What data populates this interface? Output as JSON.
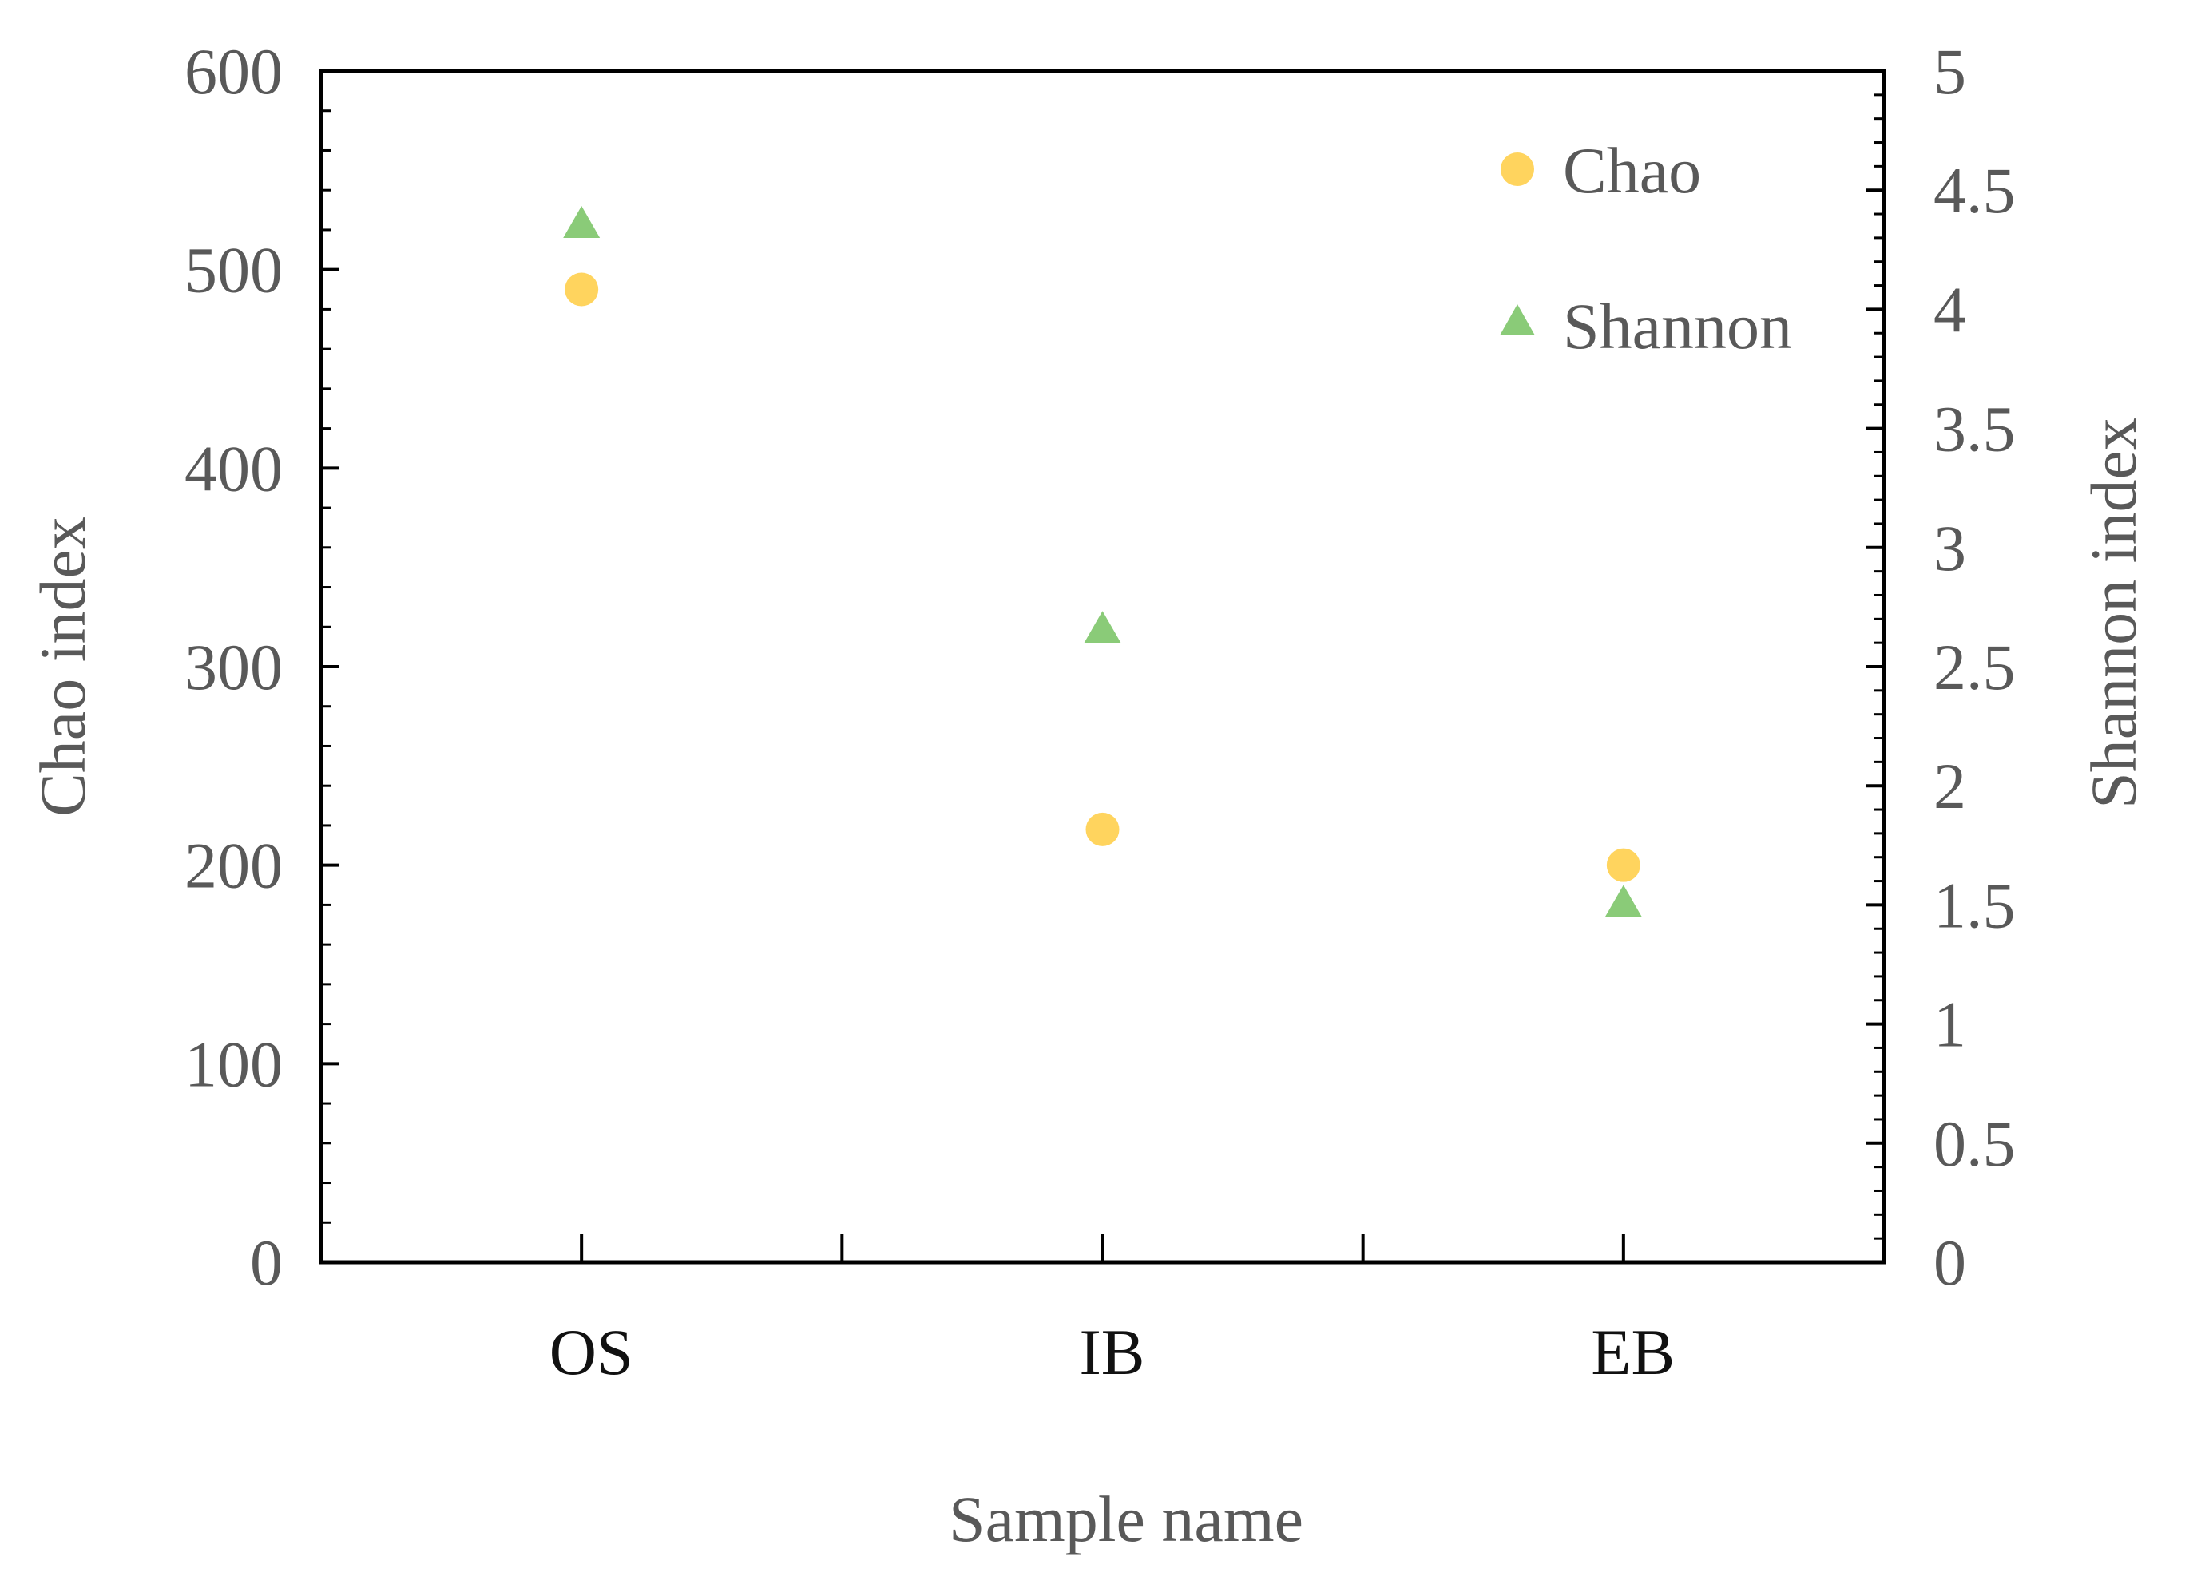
{
  "chart_data": {
    "type": "scatter",
    "categories": [
      "OS",
      "IB",
      "EB"
    ],
    "xlabel": "Sample name",
    "series": [
      {
        "name": "Chao",
        "axis": "left",
        "marker": "circle",
        "color": "#FFD45E",
        "values": [
          490,
          218,
          200
        ]
      },
      {
        "name": "Shannon",
        "axis": "right",
        "marker": "triangle",
        "color": "#8ACB78",
        "values": [
          4.35,
          2.65,
          1.5
        ]
      }
    ],
    "y_left": {
      "label": "Chao index",
      "lim": [
        0,
        600
      ],
      "ticks": [
        "0",
        "100",
        "200",
        "300",
        "400",
        "500",
        "600"
      ]
    },
    "y_right": {
      "label": "Shannon index",
      "lim": [
        0,
        5
      ],
      "ticks": [
        "0",
        "0.5",
        "1",
        "1.5",
        "2",
        "2.5",
        "3",
        "3.5",
        "4",
        "4.5",
        "5"
      ]
    },
    "grid": false,
    "legend_position": "top-right"
  }
}
